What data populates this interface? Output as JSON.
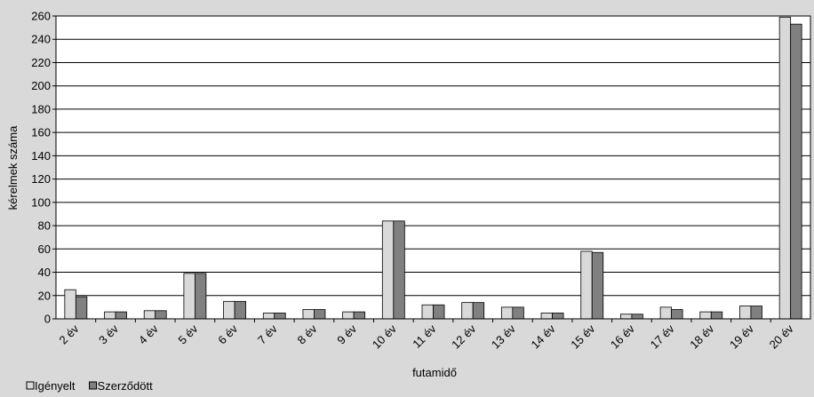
{
  "chart_data": {
    "type": "bar",
    "title": "",
    "xlabel": "futamidő",
    "ylabel": "kérelmek száma",
    "ylim": [
      0,
      260
    ],
    "yticks": [
      0,
      20,
      40,
      60,
      80,
      100,
      120,
      140,
      160,
      180,
      200,
      220,
      240,
      260
    ],
    "grid": true,
    "legend": "bottom-left",
    "categories": [
      "2 év",
      "3 év",
      "4 év",
      "5 év",
      "6 év",
      "7 év",
      "8 év",
      "9 év",
      "10 év",
      "11 év",
      "12 év",
      "13 év",
      "14 év",
      "15 év",
      "16 év",
      "17 év",
      "18 év",
      "19 év",
      "20 év"
    ],
    "series": [
      {
        "name": "Igényelt",
        "color": "#d9d9d9",
        "values": [
          25,
          6,
          7,
          39,
          15,
          5,
          8,
          6,
          84,
          12,
          14,
          10,
          5,
          58,
          4,
          10,
          6,
          11,
          259
        ]
      },
      {
        "name": "Szerződött",
        "color": "#808080",
        "values": [
          19,
          6,
          7,
          39,
          15,
          5,
          8,
          6,
          84,
          12,
          14,
          10,
          5,
          57,
          4,
          8,
          6,
          11,
          253
        ]
      }
    ]
  }
}
